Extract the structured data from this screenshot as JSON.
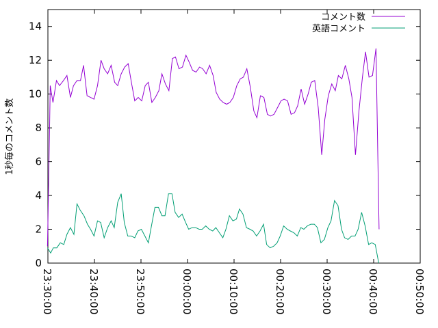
{
  "chart_data": {
    "type": "line",
    "title": "",
    "xlabel": "",
    "ylabel": "1秒毎のコメント数",
    "ylim": [
      0,
      15
    ],
    "xlim": [
      "23:30:00",
      "00:50:00"
    ],
    "y_ticks": [
      "0",
      "2",
      "4",
      "6",
      "8",
      "10",
      "12",
      "14"
    ],
    "x_ticks": [
      "23:30:00",
      "23:40:00",
      "23:50:00",
      "00:00:00",
      "00:10:00",
      "00:20:00",
      "00:30:00",
      "00:40:00",
      "00:50:00"
    ],
    "legend_position": "top-right",
    "grid": false,
    "series": [
      {
        "name": "コメント数",
        "color": "#9400d3",
        "points": [
          [
            "23:29:55",
            1.0
          ],
          [
            "23:30:20",
            7.6
          ],
          [
            "23:30:30",
            10.5
          ],
          [
            "23:31:05",
            9.5
          ],
          [
            "23:31:50",
            10.8
          ],
          [
            "23:32:30",
            10.5
          ],
          [
            "23:33:20",
            10.8
          ],
          [
            "23:34:05",
            11.1
          ],
          [
            "23:34:50",
            9.8
          ],
          [
            "23:35:30",
            10.5
          ],
          [
            "23:36:15",
            10.8
          ],
          [
            "23:37:00",
            10.8
          ],
          [
            "23:37:40",
            11.7
          ],
          [
            "23:38:25",
            9.9
          ],
          [
            "23:39:10",
            9.8
          ],
          [
            "23:39:55",
            9.7
          ],
          [
            "23:40:40",
            10.5
          ],
          [
            "23:41:25",
            12.0
          ],
          [
            "23:42:05",
            11.5
          ],
          [
            "23:42:50",
            11.2
          ],
          [
            "23:43:35",
            11.7
          ],
          [
            "23:44:20",
            10.7
          ],
          [
            "23:45:00",
            10.5
          ],
          [
            "23:45:45",
            11.2
          ],
          [
            "23:46:30",
            11.6
          ],
          [
            "23:47:15",
            11.8
          ],
          [
            "23:48:00",
            10.6
          ],
          [
            "23:48:40",
            9.6
          ],
          [
            "23:49:25",
            9.8
          ],
          [
            "23:50:10",
            9.6
          ],
          [
            "23:50:55",
            10.5
          ],
          [
            "23:51:35",
            10.7
          ],
          [
            "23:52:20",
            9.5
          ],
          [
            "23:53:05",
            9.8
          ],
          [
            "23:53:50",
            10.2
          ],
          [
            "23:54:30",
            11.2
          ],
          [
            "23:55:15",
            10.6
          ],
          [
            "23:56:00",
            10.2
          ],
          [
            "23:56:45",
            12.1
          ],
          [
            "23:57:25",
            12.2
          ],
          [
            "23:58:10",
            11.5
          ],
          [
            "23:58:55",
            11.6
          ],
          [
            "23:59:40",
            12.3
          ],
          [
            "00:00:20",
            11.9
          ],
          [
            "00:01:05",
            11.4
          ],
          [
            "00:01:50",
            11.3
          ],
          [
            "00:02:35",
            11.6
          ],
          [
            "00:03:15",
            11.5
          ],
          [
            "00:04:00",
            11.2
          ],
          [
            "00:04:45",
            11.7
          ],
          [
            "00:05:30",
            11.1
          ],
          [
            "00:06:10",
            10.1
          ],
          [
            "00:06:55",
            9.7
          ],
          [
            "00:07:40",
            9.5
          ],
          [
            "00:08:25",
            9.4
          ],
          [
            "00:09:05",
            9.5
          ],
          [
            "00:09:50",
            9.8
          ],
          [
            "00:10:35",
            10.5
          ],
          [
            "00:11:20",
            10.9
          ],
          [
            "00:12:00",
            11.0
          ],
          [
            "00:12:45",
            11.5
          ],
          [
            "00:13:30",
            10.4
          ],
          [
            "00:14:15",
            9.0
          ],
          [
            "00:14:55",
            8.6
          ],
          [
            "00:15:40",
            9.9
          ],
          [
            "00:16:25",
            9.8
          ],
          [
            "00:17:10",
            8.8
          ],
          [
            "00:17:50",
            8.7
          ],
          [
            "00:18:35",
            8.8
          ],
          [
            "00:19:20",
            9.2
          ],
          [
            "00:20:05",
            9.6
          ],
          [
            "00:20:45",
            9.7
          ],
          [
            "00:21:30",
            9.6
          ],
          [
            "00:22:15",
            8.8
          ],
          [
            "00:23:00",
            8.9
          ],
          [
            "00:23:40",
            9.3
          ],
          [
            "00:24:25",
            10.3
          ],
          [
            "00:25:10",
            9.4
          ],
          [
            "00:25:55",
            10.0
          ],
          [
            "00:26:35",
            10.7
          ],
          [
            "00:27:20",
            10.8
          ],
          [
            "00:28:05",
            9.2
          ],
          [
            "00:28:50",
            6.4
          ],
          [
            "00:29:30",
            8.5
          ],
          [
            "00:30:15",
            9.9
          ],
          [
            "00:31:00",
            10.6
          ],
          [
            "00:31:45",
            10.2
          ],
          [
            "00:32:25",
            11.1
          ],
          [
            "00:33:10",
            10.9
          ],
          [
            "00:33:55",
            11.7
          ],
          [
            "00:34:40",
            10.9
          ],
          [
            "00:35:20",
            9.8
          ],
          [
            "00:36:05",
            6.4
          ],
          [
            "00:36:50",
            9.0
          ],
          [
            "00:37:35",
            11.0
          ],
          [
            "00:38:15",
            12.5
          ],
          [
            "00:39:00",
            11.0
          ],
          [
            "00:39:45",
            11.1
          ],
          [
            "00:40:30",
            12.7
          ],
          [
            "00:41:10",
            2.0
          ]
        ]
      },
      {
        "name": "英語コメント",
        "color": "#009e73",
        "points": [
          [
            "23:29:55",
            0.9
          ],
          [
            "23:30:35",
            0.6
          ],
          [
            "23:31:10",
            0.9
          ],
          [
            "23:31:55",
            0.9
          ],
          [
            "23:32:40",
            1.2
          ],
          [
            "23:33:25",
            1.1
          ],
          [
            "23:34:05",
            1.7
          ],
          [
            "23:34:50",
            2.1
          ],
          [
            "23:35:35",
            1.7
          ],
          [
            "23:36:15",
            3.5
          ],
          [
            "23:37:00",
            3.1
          ],
          [
            "23:37:45",
            2.8
          ],
          [
            "23:38:30",
            2.3
          ],
          [
            "23:39:10",
            2.0
          ],
          [
            "23:39:55",
            1.6
          ],
          [
            "23:40:40",
            2.5
          ],
          [
            "23:41:20",
            2.4
          ],
          [
            "23:42:05",
            1.5
          ],
          [
            "23:42:50",
            2.1
          ],
          [
            "23:43:35",
            2.5
          ],
          [
            "23:44:15",
            2.1
          ],
          [
            "23:45:00",
            3.6
          ],
          [
            "23:45:45",
            4.1
          ],
          [
            "23:46:25",
            2.4
          ],
          [
            "23:47:10",
            1.6
          ],
          [
            "23:47:55",
            1.6
          ],
          [
            "23:48:40",
            1.5
          ],
          [
            "23:49:20",
            1.9
          ],
          [
            "23:50:05",
            2.0
          ],
          [
            "23:50:50",
            1.6
          ],
          [
            "23:51:35",
            1.2
          ],
          [
            "23:52:15",
            2.2
          ],
          [
            "23:53:00",
            3.3
          ],
          [
            "23:53:45",
            3.3
          ],
          [
            "23:54:30",
            2.8
          ],
          [
            "23:55:10",
            2.8
          ],
          [
            "23:55:55",
            4.1
          ],
          [
            "23:56:40",
            4.1
          ],
          [
            "23:57:20",
            3.0
          ],
          [
            "23:58:05",
            2.7
          ],
          [
            "23:58:50",
            2.9
          ],
          [
            "23:59:35",
            2.4
          ],
          [
            "00:00:15",
            2.0
          ],
          [
            "00:01:00",
            2.1
          ],
          [
            "00:01:45",
            2.1
          ],
          [
            "00:02:30",
            2.0
          ],
          [
            "00:03:10",
            2.0
          ],
          [
            "00:03:55",
            2.2
          ],
          [
            "00:04:40",
            2.0
          ],
          [
            "00:05:25",
            1.9
          ],
          [
            "00:06:05",
            2.1
          ],
          [
            "00:06:50",
            1.8
          ],
          [
            "00:07:35",
            1.5
          ],
          [
            "00:08:15",
            2.0
          ],
          [
            "00:09:00",
            2.8
          ],
          [
            "00:09:45",
            2.5
          ],
          [
            "00:10:30",
            2.6
          ],
          [
            "00:11:10",
            3.2
          ],
          [
            "00:11:55",
            2.9
          ],
          [
            "00:12:40",
            2.1
          ],
          [
            "00:13:25",
            2.0
          ],
          [
            "00:14:05",
            1.9
          ],
          [
            "00:14:50",
            1.6
          ],
          [
            "00:15:35",
            1.9
          ],
          [
            "00:16:20",
            2.3
          ],
          [
            "00:17:00",
            1.1
          ],
          [
            "00:17:45",
            0.9
          ],
          [
            "00:18:30",
            1.0
          ],
          [
            "00:19:15",
            1.2
          ],
          [
            "00:19:55",
            1.6
          ],
          [
            "00:20:40",
            2.2
          ],
          [
            "00:21:25",
            2.0
          ],
          [
            "00:22:05",
            1.9
          ],
          [
            "00:22:50",
            1.8
          ],
          [
            "00:23:35",
            1.6
          ],
          [
            "00:24:20",
            2.1
          ],
          [
            "00:25:00",
            2.0
          ],
          [
            "00:25:45",
            2.2
          ],
          [
            "00:26:30",
            2.3
          ],
          [
            "00:27:15",
            2.3
          ],
          [
            "00:27:55",
            2.1
          ],
          [
            "00:28:40",
            1.2
          ],
          [
            "00:29:25",
            1.4
          ],
          [
            "00:30:10",
            2.1
          ],
          [
            "00:30:50",
            2.5
          ],
          [
            "00:31:35",
            3.7
          ],
          [
            "00:32:20",
            3.4
          ],
          [
            "00:33:05",
            2.0
          ],
          [
            "00:33:45",
            1.5
          ],
          [
            "00:34:30",
            1.4
          ],
          [
            "00:35:15",
            1.6
          ],
          [
            "00:36:00",
            1.6
          ],
          [
            "00:36:40",
            2.0
          ],
          [
            "00:37:25",
            3.0
          ],
          [
            "00:38:10",
            2.2
          ],
          [
            "00:38:55",
            1.1
          ],
          [
            "00:39:35",
            1.2
          ],
          [
            "00:40:20",
            1.1
          ],
          [
            "00:41:05",
            0.0
          ]
        ]
      }
    ]
  }
}
